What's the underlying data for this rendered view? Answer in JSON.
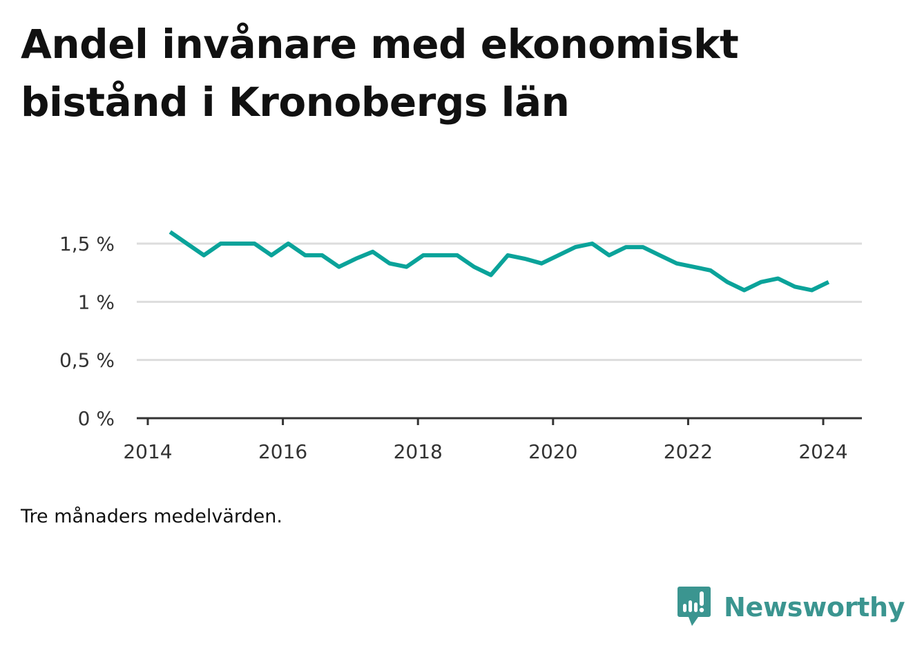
{
  "title": "Andel invånare med ekonomiskt bistånd i Kronobergs län",
  "note": "Tre månaders medelvärden.",
  "brand": {
    "name": "Newsworthy",
    "icon": "newsworthy-logo-icon",
    "color": "#3b9590"
  },
  "colors": {
    "line": "#0aa39a",
    "grid": "#dddddd",
    "axis": "#333333",
    "tick_text": "#333333"
  },
  "chart_data": {
    "type": "line",
    "title": "Andel invånare med ekonomiskt bistånd i Kronobergs län",
    "xlabel": "",
    "ylabel": "",
    "x_ticks": [
      "2014",
      "2016",
      "2018",
      "2020",
      "2022",
      "2024"
    ],
    "y_ticks": [
      "0 %",
      "0,5 %",
      "1 %",
      "1,5 %"
    ],
    "y_tick_values": [
      0,
      0.5,
      1,
      1.5
    ],
    "xlim": [
      2014,
      2024.6
    ],
    "ylim": [
      0,
      1.5
    ],
    "grid": true,
    "series": [
      {
        "x": [
          2014.33,
          2014.58,
          2014.83,
          2015.08,
          2015.33,
          2015.58,
          2015.83,
          2016.08,
          2016.33,
          2016.58,
          2016.83,
          2017.08,
          2017.33,
          2017.58,
          2017.83,
          2018.08,
          2018.33,
          2018.58,
          2018.83,
          2019.08,
          2019.33,
          2019.58,
          2019.83,
          2020.08,
          2020.33,
          2020.58,
          2020.83,
          2021.08,
          2021.33,
          2021.58,
          2021.83,
          2022.08,
          2022.33,
          2022.58,
          2022.83,
          2023.08,
          2023.33,
          2023.58,
          2023.83,
          2024.08
        ],
        "values": [
          1.6,
          1.5,
          1.4,
          1.5,
          1.5,
          1.5,
          1.4,
          1.5,
          1.4,
          1.4,
          1.3,
          1.37,
          1.43,
          1.33,
          1.3,
          1.4,
          1.4,
          1.4,
          1.3,
          1.23,
          1.4,
          1.37,
          1.33,
          1.4,
          1.47,
          1.5,
          1.4,
          1.47,
          1.47,
          1.4,
          1.33,
          1.3,
          1.27,
          1.17,
          1.1,
          1.17,
          1.2,
          1.13,
          1.1,
          1.17
        ]
      }
    ]
  }
}
